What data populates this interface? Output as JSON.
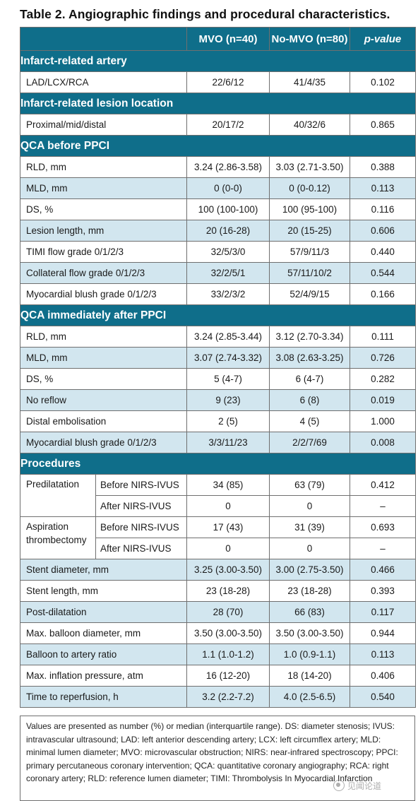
{
  "title": "Table 2. Angiographic findings and procedural characteristics.",
  "colors": {
    "header_bg": "#0f6e8a",
    "header_text": "#ffffff",
    "row_shade": "#d2e6ef",
    "row_plain": "#ffffff",
    "border": "#6f6f6f"
  },
  "columns": {
    "label": "",
    "mvo": "MVO (n=40)",
    "nomvo": "No-MVO (n=80)",
    "pvalue": "p-value"
  },
  "sections": [
    {
      "title": "Infarct-related artery",
      "rows": [
        {
          "label": "LAD/LCX/RCA",
          "mvo": "22/6/12",
          "nomvo": "41/4/35",
          "p": "0.102"
        }
      ]
    },
    {
      "title": "Infarct-related lesion location",
      "rows": [
        {
          "label": "Proximal/mid/distal",
          "mvo": "20/17/2",
          "nomvo": "40/32/6",
          "p": "0.865"
        }
      ]
    },
    {
      "title": "QCA before PPCI",
      "rows": [
        {
          "label": "RLD, mm",
          "mvo": "3.24 (2.86-3.58)",
          "nomvo": "3.03 (2.71-3.50)",
          "p": "0.388"
        },
        {
          "label": "MLD, mm",
          "mvo": "0 (0-0)",
          "nomvo": "0 (0-0.12)",
          "p": "0.113"
        },
        {
          "label": "DS, %",
          "mvo": "100 (100-100)",
          "nomvo": "100 (95-100)",
          "p": "0.116"
        },
        {
          "label": "Lesion length, mm",
          "mvo": "20 (16-28)",
          "nomvo": "20 (15-25)",
          "p": "0.606"
        },
        {
          "label": "TIMI flow grade 0/1/2/3",
          "mvo": "32/5/3/0",
          "nomvo": "57/9/11/3",
          "p": "0.440"
        },
        {
          "label": "Collateral flow grade 0/1/2/3",
          "mvo": "32/2/5/1",
          "nomvo": "57/11/10/2",
          "p": "0.544"
        },
        {
          "label": "Myocardial blush grade 0/1/2/3",
          "mvo": "33/2/3/2",
          "nomvo": "52/4/9/15",
          "p": "0.166"
        }
      ]
    },
    {
      "title": "QCA immediately after PPCI",
      "rows": [
        {
          "label": "RLD, mm",
          "mvo": "3.24 (2.85-3.44)",
          "nomvo": "3.12 (2.70-3.34)",
          "p": "0.111"
        },
        {
          "label": "MLD, mm",
          "mvo": "3.07 (2.74-3.32)",
          "nomvo": "3.08 (2.63-3.25)",
          "p": "0.726"
        },
        {
          "label": "DS, %",
          "mvo": "5 (4-7)",
          "nomvo": "6 (4-7)",
          "p": "0.282"
        },
        {
          "label": "No reflow",
          "mvo": "9 (23)",
          "nomvo": "6 (8)",
          "p": "0.019"
        },
        {
          "label": "Distal embolisation",
          "mvo": "2 (5)",
          "nomvo": "4 (5)",
          "p": "1.000"
        },
        {
          "label": "Myocardial blush grade 0/1/2/3",
          "mvo": "3/3/11/23",
          "nomvo": "2/2/7/69",
          "p": "0.008"
        }
      ]
    },
    {
      "title": "Procedures",
      "subrows": [
        {
          "group": "Predilatation",
          "label": "Before NIRS-IVUS",
          "mvo": "34 (85)",
          "nomvo": "63 (79)",
          "p": "0.412"
        },
        {
          "group": "",
          "label": "After NIRS-IVUS",
          "mvo": "0",
          "nomvo": "0",
          "p": "–"
        },
        {
          "group": "Aspiration thrombectomy",
          "label": "Before NIRS-IVUS",
          "mvo": "17 (43)",
          "nomvo": "31 (39)",
          "p": "0.693"
        },
        {
          "group": "",
          "label": "After NIRS-IVUS",
          "mvo": "0",
          "nomvo": "0",
          "p": "–"
        }
      ],
      "rows": [
        {
          "label": "Stent diameter, mm",
          "mvo": "3.25 (3.00-3.50)",
          "nomvo": "3.00 (2.75-3.50)",
          "p": "0.466"
        },
        {
          "label": "Stent length, mm",
          "mvo": "23 (18-28)",
          "nomvo": "23 (18-28)",
          "p": "0.393"
        },
        {
          "label": "Post-dilatation",
          "mvo": "28 (70)",
          "nomvo": "66 (83)",
          "p": "0.117"
        },
        {
          "label": "Max. balloon diameter, mm",
          "mvo": "3.50 (3.00-3.50)",
          "nomvo": "3.50 (3.00-3.50)",
          "p": "0.944"
        },
        {
          "label": "Balloon to artery ratio",
          "mvo": "1.1 (1.0-1.2)",
          "nomvo": "1.0 (0.9-1.1)",
          "p": "0.113"
        },
        {
          "label": "Max. inflation pressure, atm",
          "mvo": "16 (12-20)",
          "nomvo": "18 (14-20)",
          "p": "0.406"
        },
        {
          "label": "Time to reperfusion, h",
          "mvo": "3.2 (2.2-7.2)",
          "nomvo": "4.0 (2.5-6.5)",
          "p": "0.540"
        }
      ]
    }
  ],
  "footnote": "Values are presented as number (%) or median (interquartile range). DS: diameter stenosis; IVUS: intravascular ultrasound; LAD: left anterior descending artery; LCX: left circumflex artery; MLD: minimal lumen diameter; MVO: microvascular obstruction; NIRS: near-infrared spectroscopy; PPCI: primary percutaneous coronary intervention; QCA: quantitative coronary angiography; RCA: right coronary artery; RLD: reference lumen diameter; TIMI: Thrombolysis In Myocardial Infarction",
  "watermark": {
    "text": "见闻论道",
    "icon": "wechat-logo-icon"
  }
}
